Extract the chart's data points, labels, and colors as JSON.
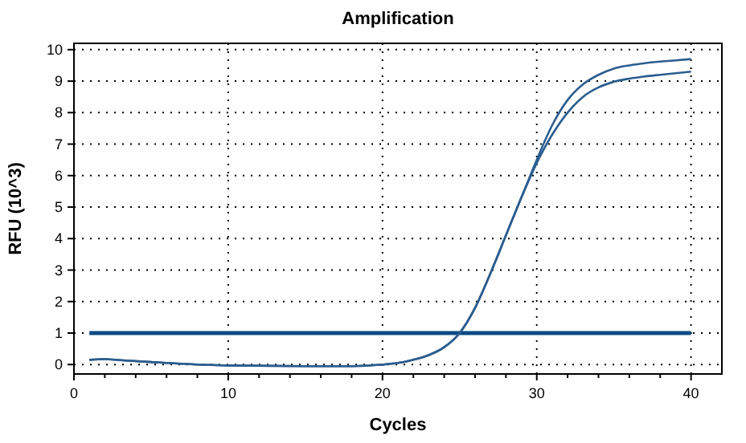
{
  "chart_data": {
    "type": "line",
    "title": "Amplification",
    "xlabel": "Cycles",
    "ylabel": "RFU (10^3)",
    "xlim": [
      0,
      42
    ],
    "ylim": [
      -0.3,
      10.2
    ],
    "xticks": [
      0,
      {
        "value": 2,
        "label": null
      },
      {
        "value": 4,
        "label": null
      },
      {
        "value": 6,
        "label": null
      },
      {
        "value": 8,
        "label": null
      },
      10,
      {
        "value": 12,
        "label": null
      },
      {
        "value": 14,
        "label": null
      },
      {
        "value": 16,
        "label": null
      },
      {
        "value": 18,
        "label": null
      },
      20,
      {
        "value": 22,
        "label": null
      },
      {
        "value": 24,
        "label": null
      },
      {
        "value": 26,
        "label": null
      },
      {
        "value": 28,
        "label": null
      },
      30,
      {
        "value": 32,
        "label": null
      },
      {
        "value": 34,
        "label": null
      },
      {
        "value": 36,
        "label": null
      },
      {
        "value": 38,
        "label": null
      },
      40
    ],
    "yticks": [
      0,
      1,
      2,
      3,
      4,
      5,
      6,
      7,
      8,
      9,
      10
    ],
    "grid": true,
    "marker": "none",
    "line_style": "solid",
    "x": [
      1,
      2,
      3,
      5,
      8,
      10,
      15,
      18,
      20,
      21,
      22,
      23,
      24,
      25,
      26,
      27,
      28,
      29,
      30,
      31,
      32,
      33,
      34,
      35,
      36,
      37,
      38,
      39,
      40
    ],
    "series": [
      {
        "color": "#2c5d8f",
        "values": [
          0.15,
          0.17,
          0.14,
          0.08,
          0.0,
          -0.03,
          -0.05,
          -0.05,
          0.0,
          0.05,
          0.15,
          0.3,
          0.55,
          1.0,
          1.8,
          2.9,
          4.1,
          5.3,
          6.5,
          7.6,
          8.4,
          8.9,
          9.2,
          9.4,
          9.5,
          9.57,
          9.62,
          9.66,
          9.7
        ]
      },
      {
        "color": "#2c5d8f",
        "values": [
          0.15,
          0.17,
          0.14,
          0.08,
          0.0,
          -0.03,
          -0.05,
          -0.05,
          0.0,
          0.05,
          0.15,
          0.3,
          0.55,
          1.0,
          1.8,
          2.9,
          4.1,
          5.3,
          6.4,
          7.3,
          8.0,
          8.5,
          8.8,
          8.98,
          9.08,
          9.15,
          9.2,
          9.25,
          9.3
        ]
      }
    ],
    "ref_lines": [
      {
        "axis": "y",
        "value": 1,
        "color": "#0d4a85"
      }
    ]
  }
}
